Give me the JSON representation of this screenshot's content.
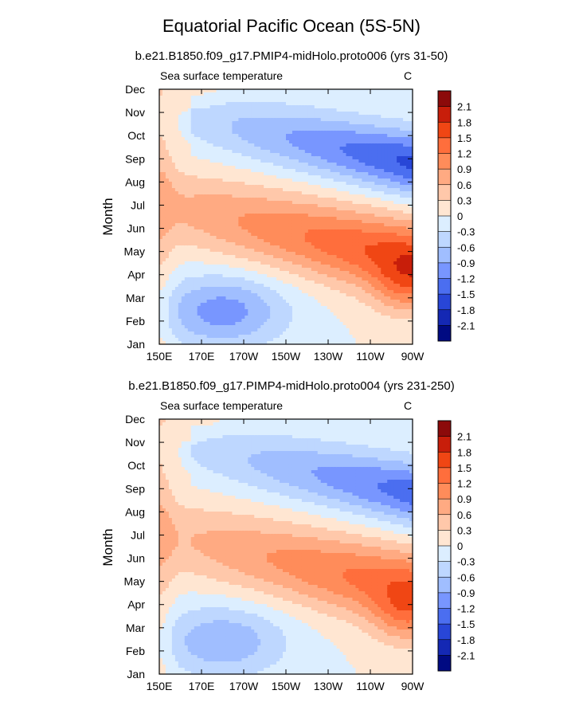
{
  "figure": {
    "title": "Equatorial Pacific Ocean (5S-5N)"
  },
  "chart_data": [
    {
      "type": "heatmap",
      "title": "b.e21.B1850.f09_g17.PMIP4-midHolo.proto006 (yrs 31-50)",
      "subtitle": "Sea surface temperature",
      "units": "C",
      "xlabel": "",
      "ylabel": "Month",
      "x_ticks": [
        "150E",
        "170E",
        "170W",
        "150W",
        "130W",
        "110W",
        "90W"
      ],
      "y_ticks": [
        "Jan",
        "Feb",
        "Mar",
        "Apr",
        "May",
        "Jun",
        "Jul",
        "Aug",
        "Sep",
        "Oct",
        "Nov",
        "Dec"
      ],
      "colorbar_levels": [
        "2.1",
        "1.8",
        "1.5",
        "1.2",
        "0.9",
        "0.6",
        "0.3",
        "0",
        "-0.3",
        "-0.6",
        "-0.9",
        "-1.2",
        "-1.5",
        "-1.8",
        "-2.1"
      ],
      "colorbar_colors": [
        "#8c0a0a",
        "#c81e0a",
        "#f04614",
        "#ff6e3c",
        "#ff8c5a",
        "#ffaa82",
        "#ffc8aa",
        "#ffe6d2",
        "#dceeff",
        "#bed7ff",
        "#a0beff",
        "#7896ff",
        "#4b6ef0",
        "#2846d7",
        "#1428b4",
        "#000a82"
      ],
      "approx_values": [
        {
          "month": "Jan",
          "min": -0.9,
          "max": 0.6
        },
        {
          "month": "Feb",
          "min": -1.1,
          "max": 0.9
        },
        {
          "month": "Mar",
          "min": -1.0,
          "max": 1.3
        },
        {
          "month": "Apr",
          "min": -0.8,
          "max": 1.5
        },
        {
          "month": "May",
          "min": -0.4,
          "max": 1.4
        },
        {
          "month": "Jun",
          "min": 0.0,
          "max": 1.3
        },
        {
          "month": "Jul",
          "min": 0.2,
          "max": 0.9
        },
        {
          "month": "Aug",
          "min": -0.6,
          "max": 0.5
        },
        {
          "month": "Sep",
          "min": -1.3,
          "max": 0.3
        },
        {
          "month": "Oct",
          "min": -1.3,
          "max": 0.3
        },
        {
          "month": "Nov",
          "min": -1.2,
          "max": 0.2
        },
        {
          "month": "Dec",
          "min": -0.9,
          "max": 0.1
        }
      ]
    },
    {
      "type": "heatmap",
      "title": "b.e21.B1850.f09_g17.PIMP4-midHolo.proto004 (yrs 231-250)",
      "subtitle": "Sea surface temperature",
      "units": "C",
      "xlabel": "",
      "ylabel": "Month",
      "x_ticks": [
        "150E",
        "170E",
        "170W",
        "150W",
        "130W",
        "110W",
        "90W"
      ],
      "y_ticks": [
        "Jan",
        "Feb",
        "Mar",
        "Apr",
        "May",
        "Jun",
        "Jul",
        "Aug",
        "Sep",
        "Oct",
        "Nov",
        "Dec"
      ],
      "colorbar_levels": [
        "2.1",
        "1.8",
        "1.5",
        "1.2",
        "0.9",
        "0.6",
        "0.3",
        "0",
        "-0.3",
        "-0.6",
        "-0.9",
        "-1.2",
        "-1.5",
        "-1.8",
        "-2.1"
      ],
      "colorbar_colors": [
        "#8c0a0a",
        "#c81e0a",
        "#f04614",
        "#ff6e3c",
        "#ff8c5a",
        "#ffaa82",
        "#ffc8aa",
        "#ffe6d2",
        "#dceeff",
        "#bed7ff",
        "#a0beff",
        "#7896ff",
        "#4b6ef0",
        "#2846d7",
        "#1428b4",
        "#000a82"
      ],
      "approx_values": [
        {
          "month": "Jan",
          "min": -0.7,
          "max": 0.5
        },
        {
          "month": "Feb",
          "min": -0.9,
          "max": 0.9
        },
        {
          "month": "Mar",
          "min": -0.8,
          "max": 1.3
        },
        {
          "month": "Apr",
          "min": -0.6,
          "max": 1.2
        },
        {
          "month": "May",
          "min": -0.3,
          "max": 1.3
        },
        {
          "month": "Jun",
          "min": 0.0,
          "max": 1.3
        },
        {
          "month": "Jul",
          "min": 0.1,
          "max": 0.9
        },
        {
          "month": "Aug",
          "min": -0.6,
          "max": 0.6
        },
        {
          "month": "Sep",
          "min": -1.3,
          "max": 0.3
        },
        {
          "month": "Oct",
          "min": -1.2,
          "max": 0.3
        },
        {
          "month": "Nov",
          "min": -0.9,
          "max": 0.4
        },
        {
          "month": "Dec",
          "min": -0.8,
          "max": 0.3
        }
      ]
    }
  ]
}
